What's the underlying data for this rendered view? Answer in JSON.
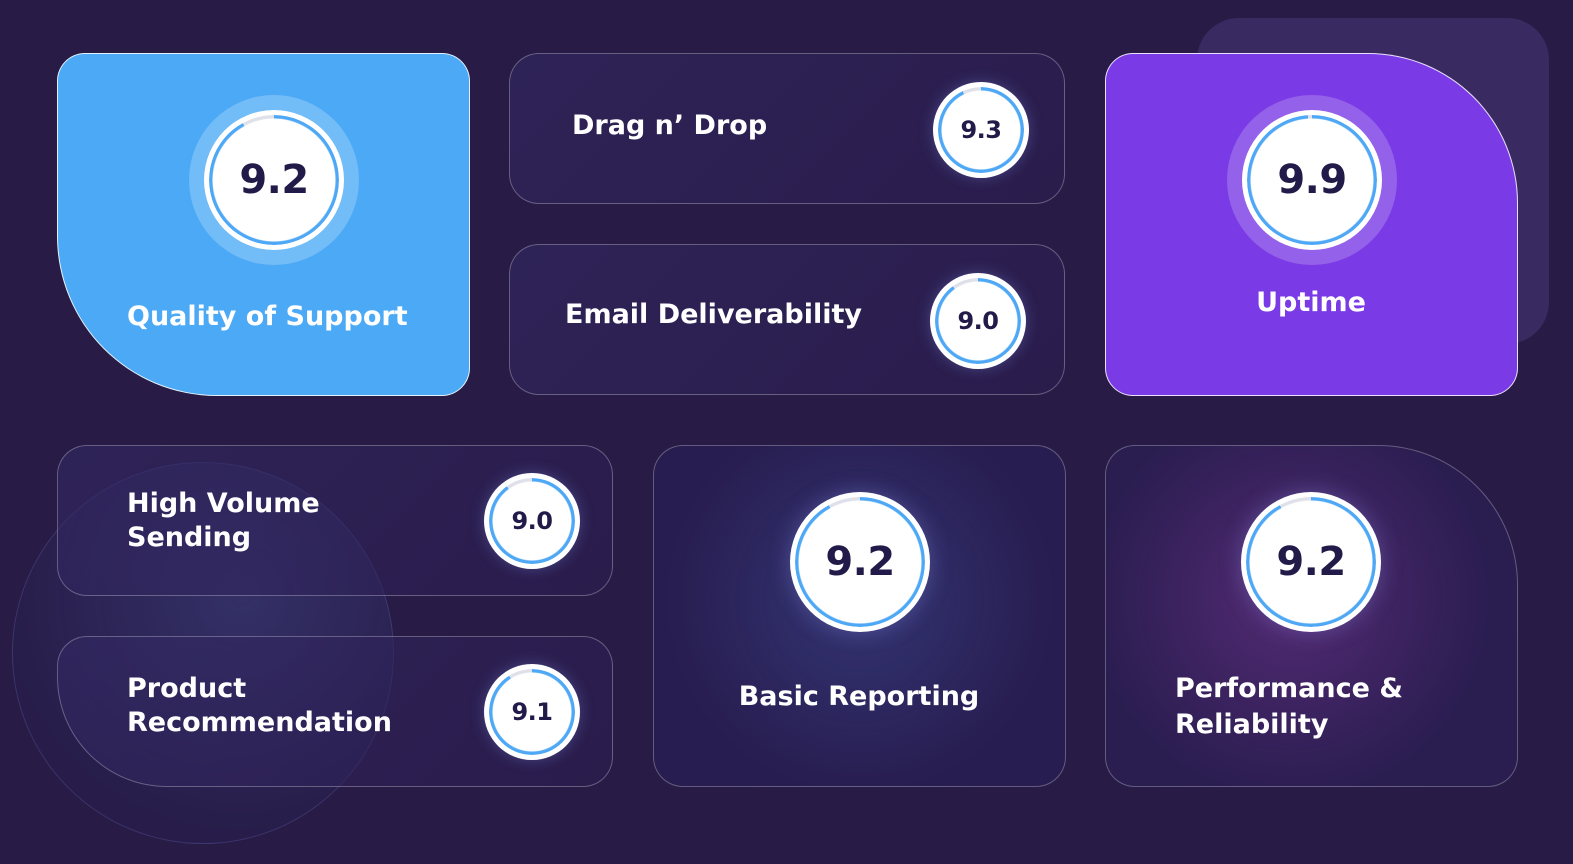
{
  "theme": {
    "background": "#281c46",
    "accent_blue": "#4ba9f6",
    "accent_purple": "#7a3ae6",
    "ring_color": "#4ea8f5",
    "score_text": "#221a48"
  },
  "ratings": {
    "quality_support": {
      "label": "Quality of Support",
      "score": "9.2"
    },
    "drag_drop": {
      "label": "Drag n’ Drop",
      "score": "9.3"
    },
    "email_deliverability": {
      "label": "Email Deliverability",
      "score": "9.0"
    },
    "uptime": {
      "label": "Uptime",
      "score": "9.9"
    },
    "high_volume": {
      "label_line1": "High Volume",
      "label_line2": "Sending",
      "score": "9.0"
    },
    "product_recommendation": {
      "label_line1": "Product",
      "label_line2": "Recommendation",
      "score": "9.1"
    },
    "basic_reporting": {
      "label": "Basic Reporting",
      "score": "9.2"
    },
    "performance_reliability": {
      "label_line1": "Performance &",
      "label_line2": "Reliability",
      "score": "9.2"
    }
  },
  "icons": [
    "score-ring-icon"
  ]
}
